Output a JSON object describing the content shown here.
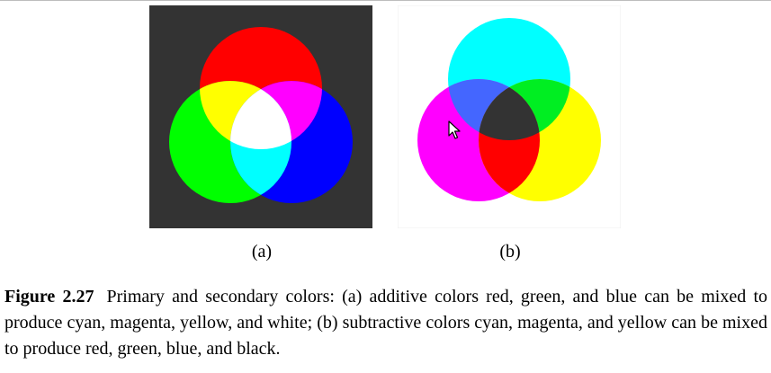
{
  "panel_a": {
    "label": "(a)",
    "background": "#333333",
    "colors": {
      "red": "#ff0000",
      "green": "#00ff00",
      "blue": "#0000ff",
      "yellow": "#ffff00",
      "magenta": "#ff00ff",
      "cyan": "#00ffff",
      "white": "#ffffff"
    }
  },
  "panel_b": {
    "label": "(b)",
    "background": "#ffffff",
    "colors": {
      "cyan": "#00ffff",
      "magenta": "#ff00ff",
      "yellow": "#ffff00",
      "blue": "#4466ff",
      "green": "#00ee22",
      "red": "#ff0000",
      "black": "#333333"
    }
  },
  "caption": {
    "figure_number": "Figure 2.27",
    "text": "Primary and secondary colors: (a) additive colors red, green, and blue can be mixed to produce cyan, magenta, yellow, and white; (b) subtractive colors cyan, magenta, and yellow can be mixed to produce red, green, blue, and black."
  },
  "cursor_icon": "mouse-pointer-icon"
}
